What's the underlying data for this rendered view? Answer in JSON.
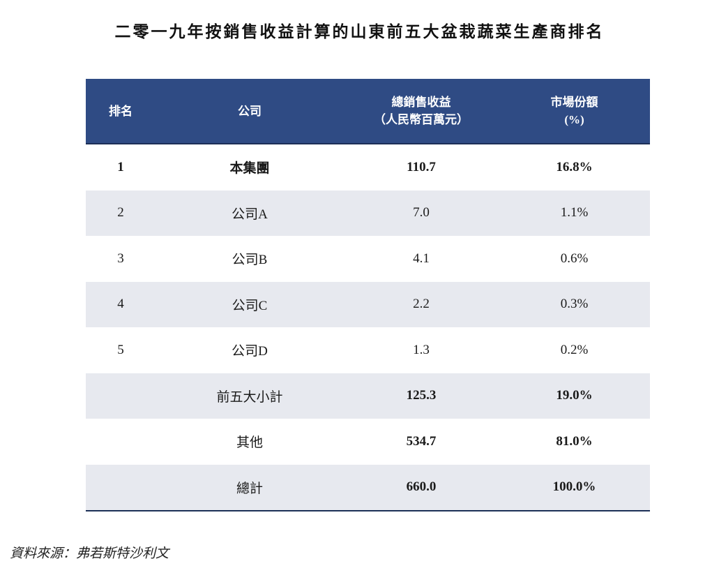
{
  "title": "二零一九年按銷售收益計算的山東前五大盆栽蔬菜生產商排名",
  "table": {
    "headers": {
      "rank": "排名",
      "company": "公司",
      "revenue_line1": "總銷售收益",
      "revenue_line2": "（人民幣百萬元）",
      "share_line1": "市場份額",
      "share_line2": "(%)"
    },
    "rows": [
      {
        "rank": "1",
        "company": "本集團",
        "revenue": "110.7",
        "share": "16.8%"
      },
      {
        "rank": "2",
        "company": "公司A",
        "revenue": "7.0",
        "share": "1.1%"
      },
      {
        "rank": "3",
        "company": "公司B",
        "revenue": "4.1",
        "share": "0.6%"
      },
      {
        "rank": "4",
        "company": "公司C",
        "revenue": "2.2",
        "share": "0.3%"
      },
      {
        "rank": "5",
        "company": "公司D",
        "revenue": "1.3",
        "share": "0.2%"
      },
      {
        "rank": "",
        "company": "前五大小計",
        "revenue": "125.3",
        "share": "19.0%"
      },
      {
        "rank": "",
        "company": "其他",
        "revenue": "534.7",
        "share": "81.0%"
      },
      {
        "rank": "",
        "company": "總計",
        "revenue": "660.0",
        "share": "100.0%"
      }
    ]
  },
  "source": "資料來源：弗若斯特沙利文"
}
